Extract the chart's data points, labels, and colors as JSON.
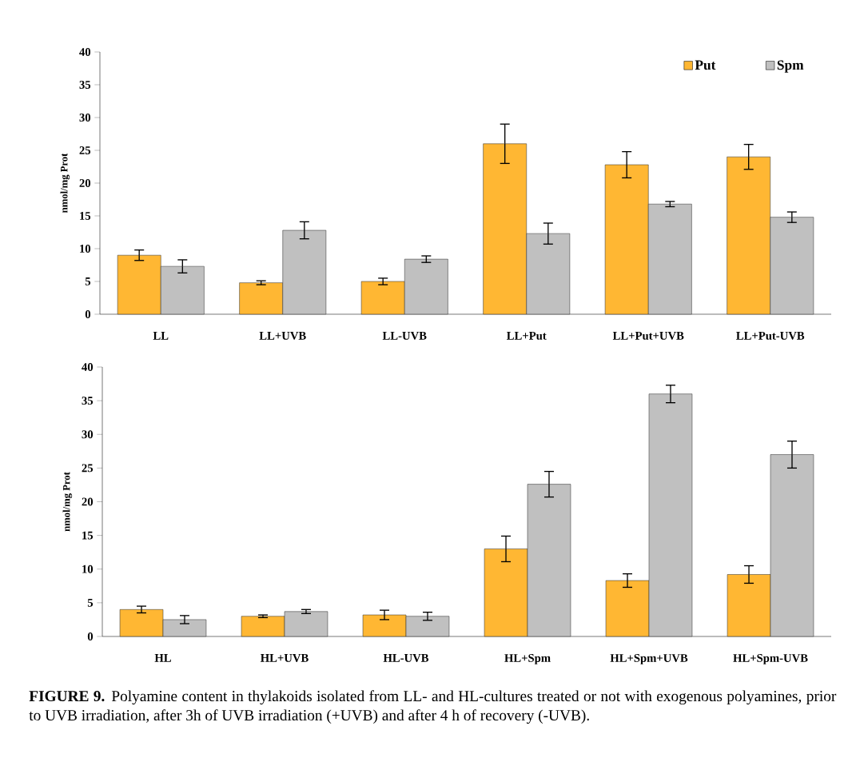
{
  "chart_data": [
    {
      "type": "bar",
      "ylabel": "nmol/mg Prot",
      "categories": [
        "LL",
        "LL+UVB",
        "LL-UVB",
        "LL+Put",
        "LL+Put+UVB",
        "LL+Put-UVB"
      ],
      "ylim": [
        0,
        40
      ],
      "yticks": [
        0,
        5,
        10,
        15,
        20,
        25,
        30,
        35,
        40
      ],
      "legend": "top right",
      "grid": false,
      "series": [
        {
          "name": "Put",
          "color": "#ffb733",
          "values": [
            9,
            4.8,
            5,
            26,
            22.8,
            24
          ],
          "errors": [
            0.8,
            0.3,
            0.5,
            3,
            2,
            1.9
          ]
        },
        {
          "name": "Spm",
          "color": "#c0c0c0",
          "values": [
            7.3,
            12.8,
            8.4,
            12.3,
            16.8,
            14.8
          ],
          "errors": [
            1,
            1.3,
            0.5,
            1.6,
            0.4,
            0.8
          ]
        }
      ]
    },
    {
      "type": "bar",
      "ylabel": "nmol/mg Prot",
      "categories": [
        "HL",
        "HL+UVB",
        "HL-UVB",
        "HL+Spm",
        "HL+Spm+UVB",
        "HL+Spm-UVB"
      ],
      "ylim": [
        0,
        40
      ],
      "yticks": [
        0,
        5,
        10,
        15,
        20,
        25,
        30,
        35,
        40
      ],
      "legend": false,
      "grid": false,
      "annotations": [
        "**FIGURE 9.** Polyamine content in thylakoids isolated from LL- and HL-cultures treated or not with exogenous polyamines, prior to UVB irradiation, after 3h of UVB irradiation (+UVB) and after 4 h of recovery (-UVB)."
      ],
      "series": [
        {
          "color": "#ffb733",
          "values": [
            4,
            3,
            3.2,
            13,
            8.3,
            9.2
          ],
          "errors": [
            0.5,
            0.2,
            0.7,
            1.9,
            1,
            1.3
          ]
        },
        {
          "color": "#c0c0c0",
          "values": [
            2.5,
            3.7,
            3,
            22.6,
            36,
            27
          ],
          "errors": [
            0.6,
            0.3,
            0.6,
            1.9,
            1.3,
            2
          ]
        }
      ]
    }
  ]
}
